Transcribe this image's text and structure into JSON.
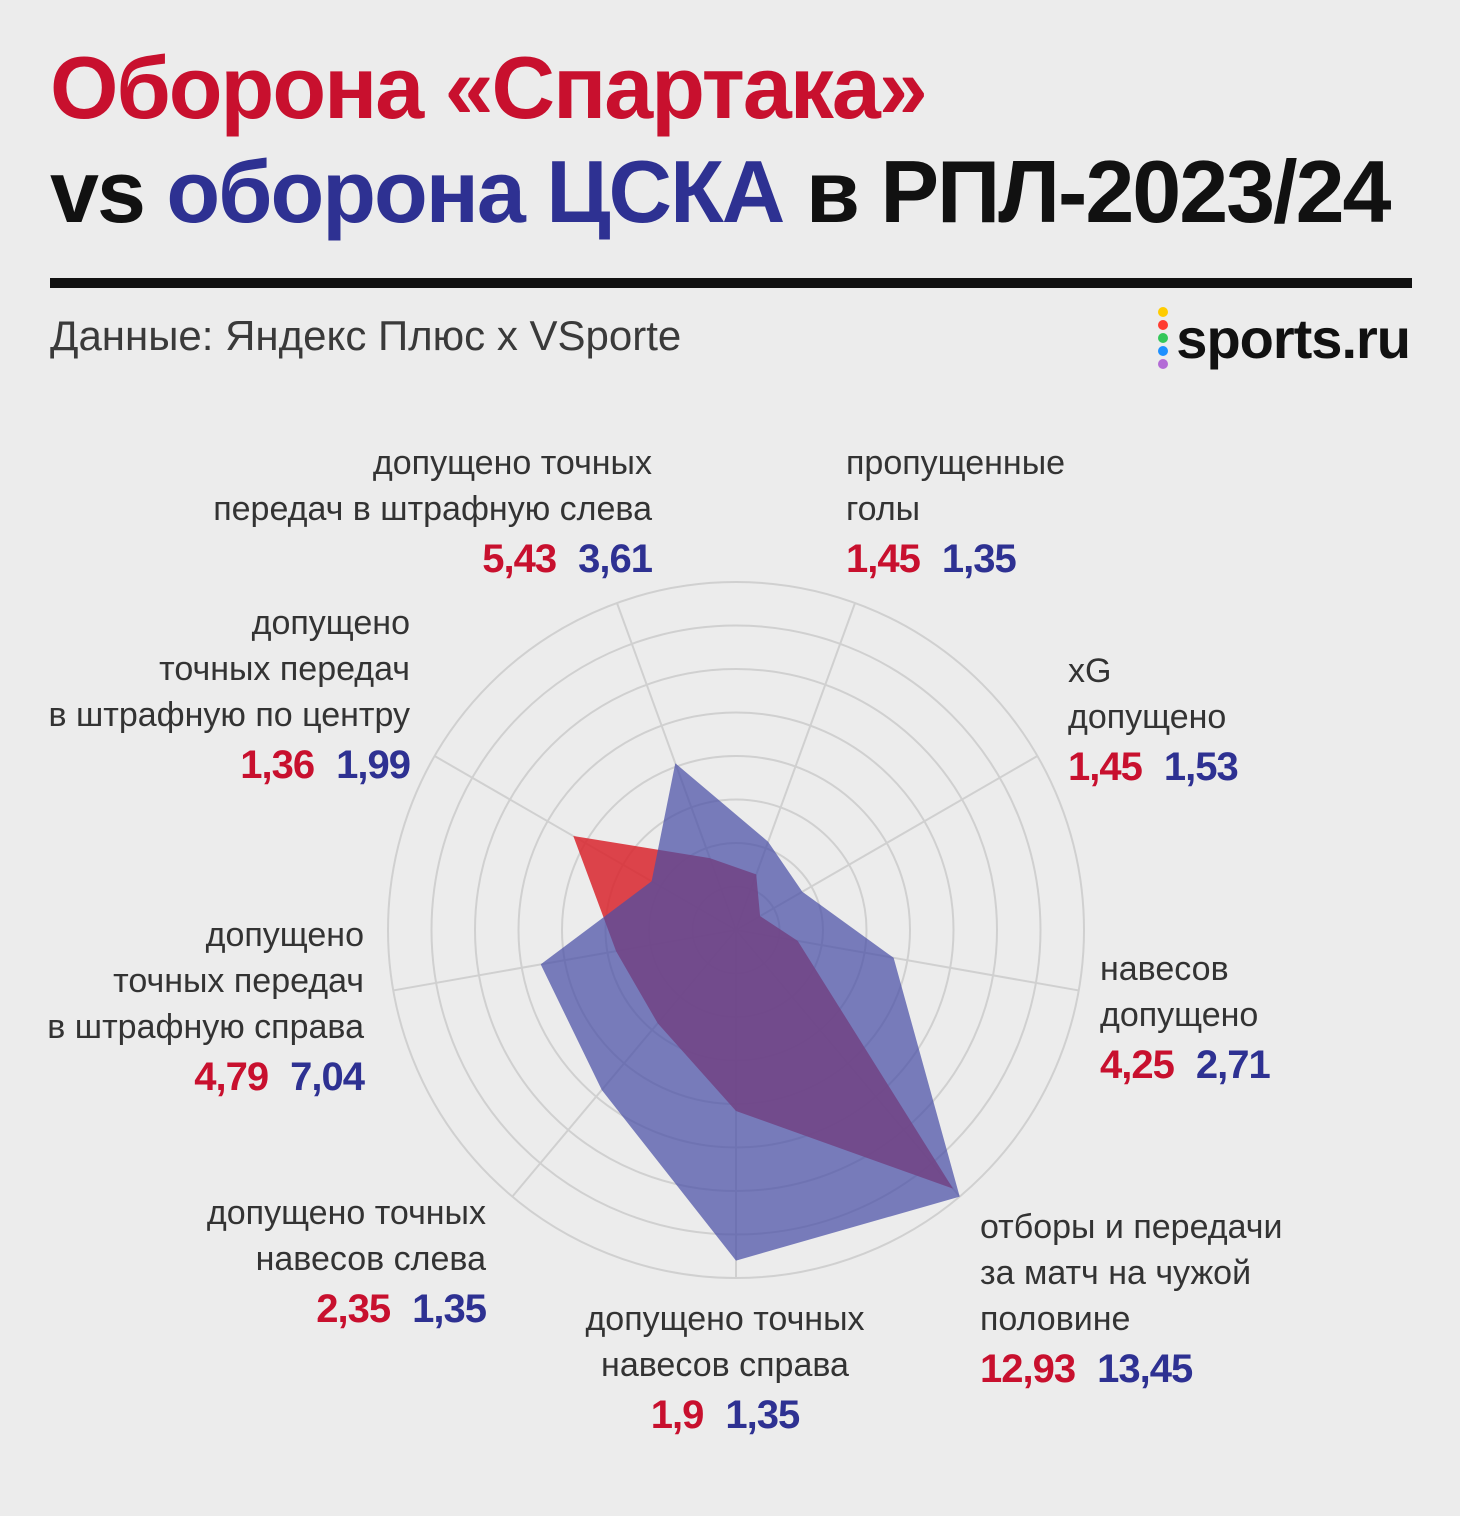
{
  "header": {
    "title_line1": "Оборона «Спартака»",
    "title_vs": "vs",
    "title_oborona": "оборона",
    "title_cska": "ЦСКА",
    "title_rest": "в РПЛ-2023/24",
    "source": "Данные: Яндекс Плюс x VSporte"
  },
  "logo": {
    "text": "sports.ru",
    "dot_colors": [
      "#ffcc00",
      "#ff3b30",
      "#34c759",
      "#1e90ff",
      "#b36bd6"
    ]
  },
  "colors": {
    "spartak": "#c8102e",
    "cska": "#2e3192",
    "spartak_fill": "#d9262e",
    "cska_fill": "#4a4fa6",
    "grid": "#d0d0d0"
  },
  "chart_data": {
    "type": "radar",
    "title": "Оборона «Спартака» vs оборона ЦСКА в РПЛ-2023/24",
    "axes": [
      {
        "name": "пропущенные голы",
        "lines": [
          "пропущенные",
          "голы"
        ],
        "spartak": "1,45",
        "cska": "1,35"
      },
      {
        "name": "xG допущено",
        "lines": [
          "xG",
          "допущено"
        ],
        "spartak": "1,45",
        "cska": "1,53"
      },
      {
        "name": "навесов допущено",
        "lines": [
          "навесов",
          "допущено"
        ],
        "spartak": "4,25",
        "cska": "2,71"
      },
      {
        "name": "отборы и передачи за матч на чужой половине",
        "lines": [
          "отборы и передачи",
          "за матч на чужой",
          "половине"
        ],
        "spartak": "12,93",
        "cska": "13,45"
      },
      {
        "name": "допущено точных навесов справа",
        "lines": [
          "допущено точных",
          "навесов справа"
        ],
        "spartak": "1,9",
        "cska": "1,35"
      },
      {
        "name": "допущено точных навесов слева",
        "lines": [
          "допущено точных",
          "навесов слева"
        ],
        "spartak": "2,35",
        "cska": "1,35"
      },
      {
        "name": "допущено точных передач в штрафную справа",
        "lines": [
          "допущено",
          "точных передач",
          "в штрафную справа"
        ],
        "spartak": "4,79",
        "cska": "7,04"
      },
      {
        "name": "допущено точных передач в штрафную по центру",
        "lines": [
          "допущено",
          "точных передач",
          "в штрафную по центру"
        ],
        "spartak": "1,36",
        "cska": "1,99"
      },
      {
        "name": "допущено точных передач в штрафную слева",
        "lines": [
          "допущено точных",
          "передач в штрафную слева"
        ],
        "spartak": "5,43",
        "cska": "3,61"
      }
    ],
    "series": [
      {
        "values": [
          0.17,
          0.08,
          0.18,
          0.97,
          0.52,
          0.35,
          0.35,
          0.54,
          0.22
        ]
      },
      {
        "values": [
          0.27,
          0.22,
          0.46,
          1.0,
          0.95,
          0.6,
          0.57,
          0.28,
          0.51
        ]
      }
    ],
    "rings": 8,
    "legend": "none"
  }
}
